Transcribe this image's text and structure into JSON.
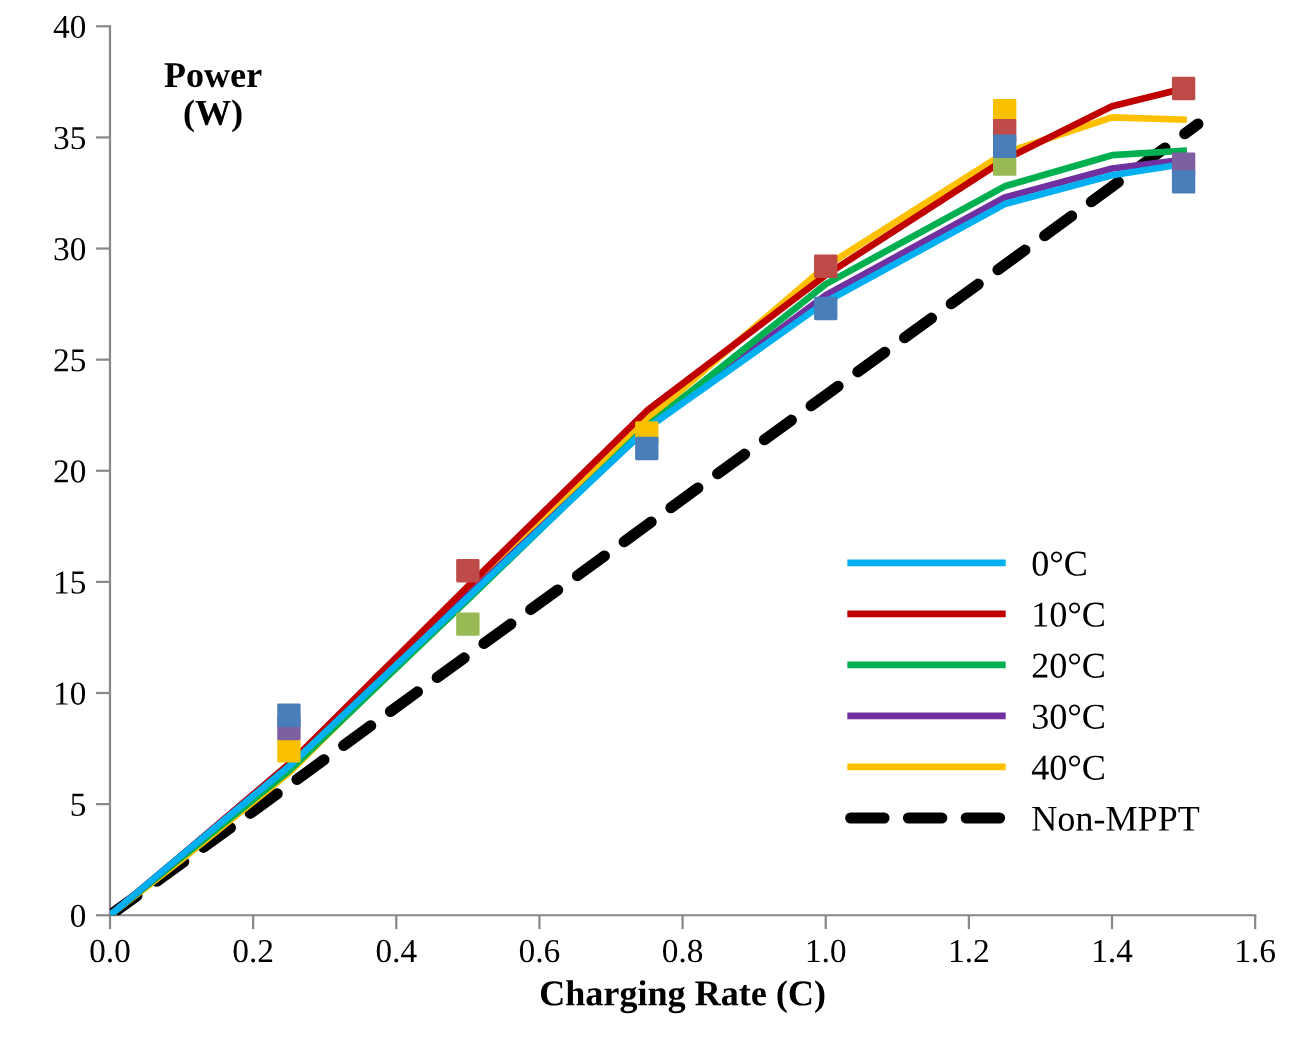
{
  "chart_data": {
    "type": "line",
    "xlabel": "Charging Rate (C)",
    "ylabel": "Power\n(W)",
    "xlim": [
      0,
      1.6
    ],
    "ylim": [
      0,
      40
    ],
    "xticks": [
      {
        "value": 0,
        "label": "0.0"
      },
      {
        "value": 0.2,
        "label": "0.2"
      },
      {
        "value": 0.4,
        "label": "0.4"
      },
      {
        "value": 0.6,
        "label": "0.6"
      },
      {
        "value": 0.8,
        "label": "0.8"
      },
      {
        "value": 1,
        "label": "1.0"
      },
      {
        "value": 1.2,
        "label": "1.2"
      },
      {
        "value": 1.4,
        "label": "1.4"
      },
      {
        "value": 1.6,
        "label": "1.6"
      }
    ],
    "yticks": [
      0,
      5,
      10,
      15,
      20,
      25,
      30,
      35,
      40
    ],
    "grid": false,
    "legend": "bottom right",
    "marker": "none",
    "line_style": "solid",
    "series": [
      {
        "type": "scatter",
        "marker": "square",
        "color": "#4a7ebb",
        "x": [
          0.25,
          0.75,
          1.0,
          1.25,
          1.5
        ],
        "values": [
          9.0,
          21.0,
          27.3,
          34.6,
          33.0
        ]
      },
      {
        "type": "scatter",
        "marker": "square",
        "color": "#be4b48",
        "x": [
          0.5,
          1.0,
          1.25,
          1.5
        ],
        "values": [
          15.5,
          29.2,
          35.3,
          37.2
        ]
      },
      {
        "type": "scatter",
        "marker": "square",
        "color": "#98b954",
        "x": [
          0.5,
          1.25
        ],
        "values": [
          13.1,
          33.8
        ]
      },
      {
        "type": "scatter",
        "marker": "square",
        "color": "#7d60a0",
        "x": [
          0.25,
          1.5
        ],
        "values": [
          8.4,
          33.8
        ]
      },
      {
        "type": "scatter",
        "marker": "square",
        "color": "#f9c000",
        "x": [
          0.25,
          0.75,
          1.25
        ],
        "values": [
          7.4,
          21.7,
          36.2
        ]
      },
      {
        "name": "0°C",
        "color": "#00b0f0",
        "x": [
          0,
          0.1,
          0.25,
          0.5,
          0.75,
          1.0,
          1.25,
          1.4,
          1.5
        ],
        "values": [
          0,
          2.7,
          6.7,
          14.3,
          21.9,
          27.6,
          32.0,
          33.3,
          33.8
        ]
      },
      {
        "name": "10°C",
        "color": "#c00000",
        "x": [
          0,
          0.1,
          0.25,
          0.5,
          0.75,
          1.0,
          1.25,
          1.4,
          1.5
        ],
        "values": [
          0,
          2.7,
          6.8,
          14.8,
          22.7,
          28.8,
          34.0,
          36.4,
          37.2
        ]
      },
      {
        "name": "20°C",
        "color": "#00b050",
        "x": [
          0,
          0.1,
          0.25,
          0.5,
          0.75,
          1.0,
          1.25,
          1.4,
          1.5
        ],
        "values": [
          0,
          2.6,
          6.5,
          14.2,
          22.0,
          28.4,
          32.8,
          34.2,
          34.4
        ]
      },
      {
        "name": "30°C",
        "color": "#7030a0",
        "x": [
          0,
          0.1,
          0.25,
          0.5,
          0.75,
          1.0,
          1.25,
          1.4,
          1.5
        ],
        "values": [
          0,
          2.7,
          6.8,
          14.4,
          21.9,
          27.9,
          32.3,
          33.6,
          34.0
        ]
      },
      {
        "name": "40°C",
        "color": "#ffc000",
        "x": [
          0,
          0.1,
          0.25,
          0.5,
          0.75,
          1.0,
          1.25,
          1.4,
          1.5
        ],
        "values": [
          0,
          2.5,
          6.4,
          14.4,
          22.3,
          29.2,
          34.3,
          35.9,
          35.8
        ]
      },
      {
        "name": "Non-MPPT",
        "color": "#000000",
        "line_style": "dashed",
        "x": [
          0,
          0.5,
          1.0,
          1.52
        ],
        "values": [
          0,
          11.7,
          23.4,
          35.6
        ]
      }
    ]
  }
}
